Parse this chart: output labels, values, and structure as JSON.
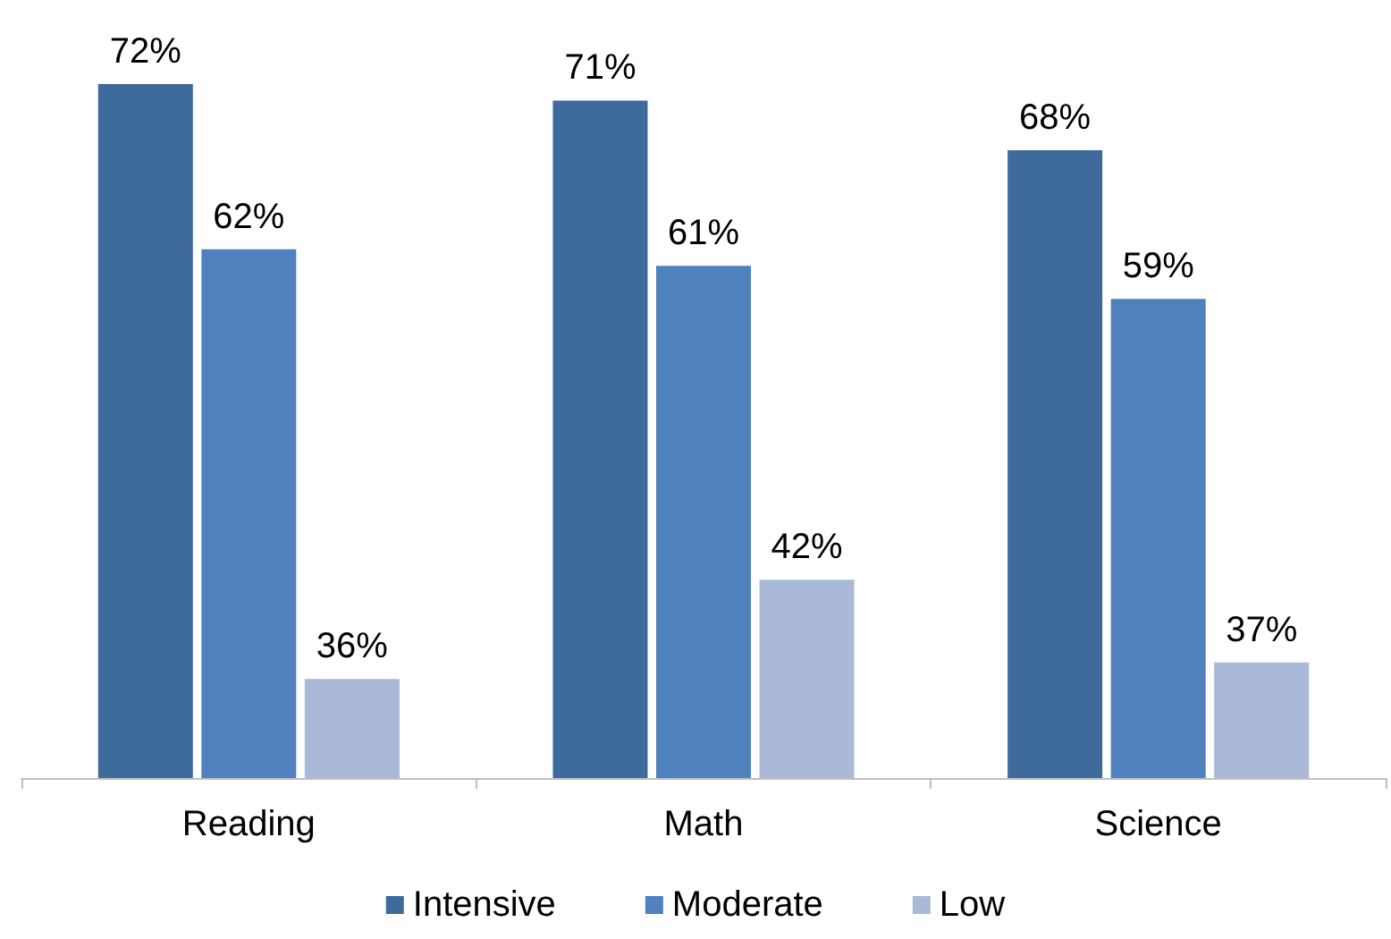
{
  "chart_data": {
    "type": "bar",
    "categories": [
      "Reading",
      "Math",
      "Science"
    ],
    "series": [
      {
        "name": "Intensive",
        "color": "#3e6a9c",
        "values": [
          72,
          71,
          68
        ],
        "value_labels": [
          "72%",
          "71%",
          "68%"
        ]
      },
      {
        "name": "Moderate",
        "color": "#4f81bd",
        "values": [
          62,
          61,
          59
        ],
        "value_labels": [
          "62%",
          "61%",
          "59%"
        ]
      },
      {
        "name": "Low",
        "color": "#a9b9d7",
        "values": [
          36,
          42,
          37
        ],
        "value_labels": [
          "36%",
          "42%",
          "37%"
        ]
      }
    ],
    "ylim": [
      30,
      72
    ],
    "tick_labels": "x",
    "grid": false,
    "legend": "bottom"
  }
}
